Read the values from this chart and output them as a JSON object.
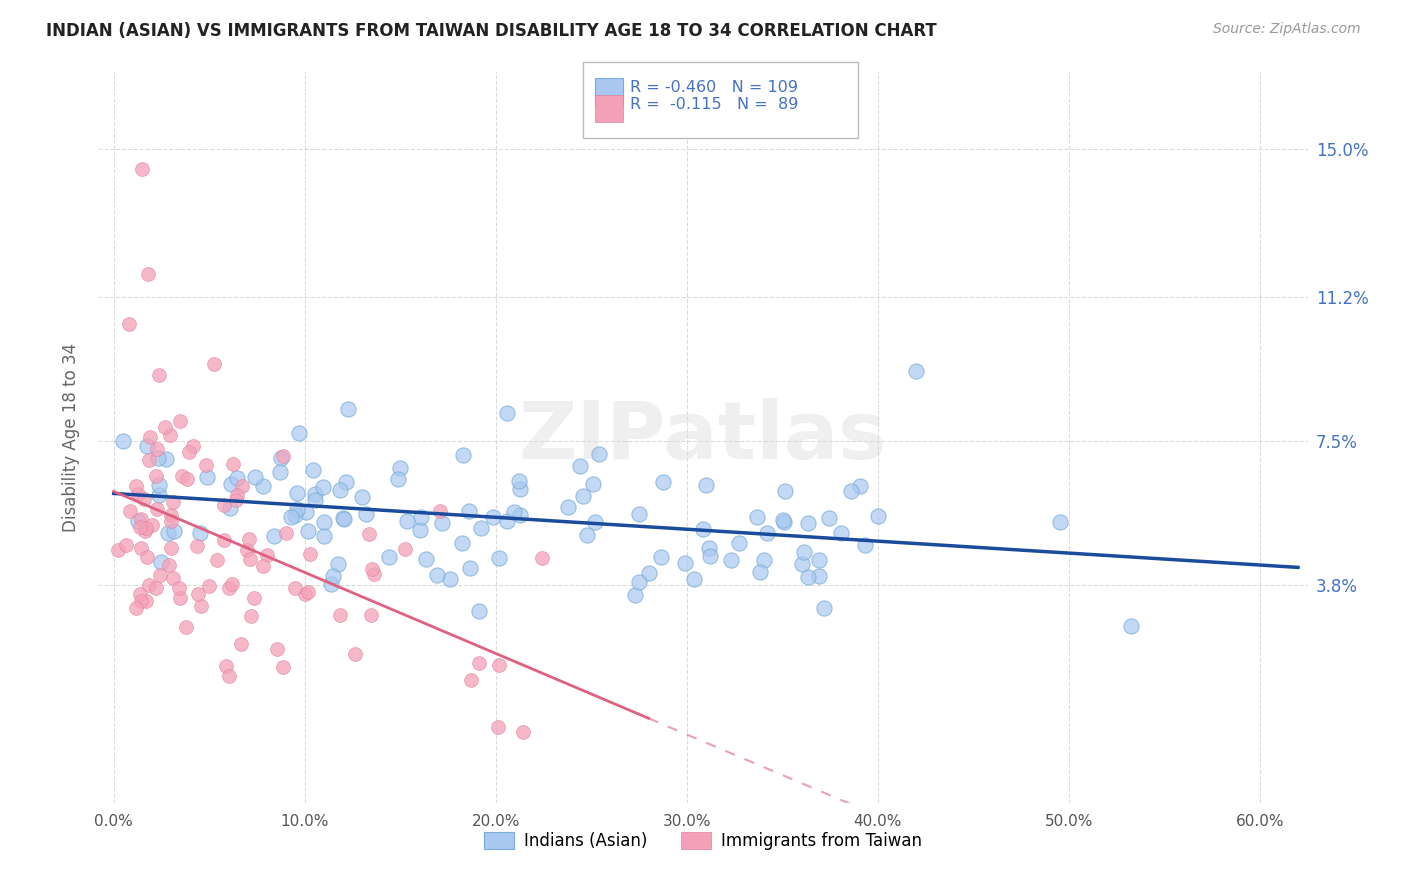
{
  "title": "INDIAN (ASIAN) VS IMMIGRANTS FROM TAIWAN DISABILITY AGE 18 TO 34 CORRELATION CHART",
  "source": "Source: ZipAtlas.com",
  "ylabel": "Disability Age 18 to 34",
  "ytick_labels": [
    "3.8%",
    "7.5%",
    "11.2%",
    "15.0%"
  ],
  "ytick_vals": [
    0.038,
    0.075,
    0.112,
    0.15
  ],
  "xtick_labels": [
    "0.0%",
    "10.0%",
    "20.0%",
    "30.0%",
    "40.0%",
    "50.0%",
    "60.0%"
  ],
  "xtick_vals": [
    0.0,
    0.1,
    0.2,
    0.3,
    0.4,
    0.5,
    0.6
  ],
  "xlim": [
    -0.008,
    0.625
  ],
  "ylim": [
    -0.018,
    0.17
  ],
  "blue_color": "#a8c8f0",
  "blue_edge_color": "#7aacd4",
  "pink_color": "#f4a0b8",
  "blue_line_color": "#1a4b9c",
  "pink_line_color": "#e06080",
  "watermark": "ZIPatlas",
  "legend_text_color": "#4472c4",
  "grid_color": "#cccccc",
  "title_color": "#222222",
  "source_color": "#999999",
  "ylabel_color": "#666666"
}
